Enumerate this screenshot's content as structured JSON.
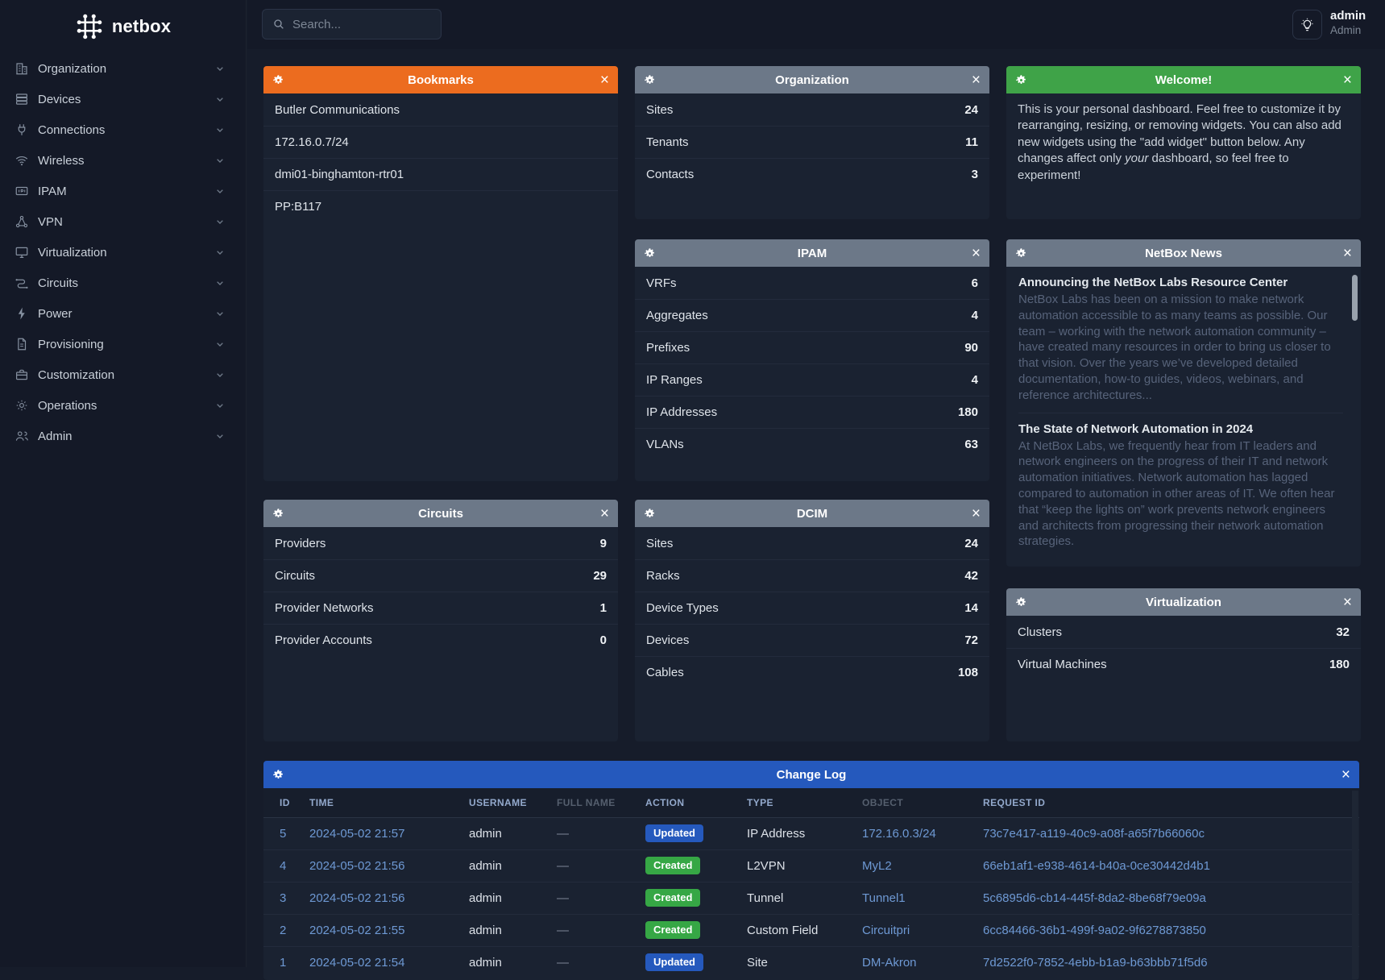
{
  "colors": {
    "page_bg": "#161c2a",
    "sidebar_bg": "#141927",
    "card_bg": "#1a2231",
    "header_orange": "#ec6c1f",
    "header_gray": "#6c7888",
    "header_green": "#3fa348",
    "header_blue": "#2559bd",
    "badge_created_green": "#36a745",
    "badge_updated_blue": "#2559bd",
    "link_blue": "#6e99d4"
  },
  "sidebar": {
    "logo_text": "netbox",
    "items": [
      {
        "label": "Organization",
        "icon": "building-icon"
      },
      {
        "label": "Devices",
        "icon": "devices-icon"
      },
      {
        "label": "Connections",
        "icon": "plug-icon"
      },
      {
        "label": "Wireless",
        "icon": "wifi-icon"
      },
      {
        "label": "IPAM",
        "icon": "ipam-icon"
      },
      {
        "label": "VPN",
        "icon": "network-nodes-icon"
      },
      {
        "label": "Virtualization",
        "icon": "monitor-icon"
      },
      {
        "label": "Circuits",
        "icon": "transit-icon"
      },
      {
        "label": "Power",
        "icon": "lightning-icon"
      },
      {
        "label": "Provisioning",
        "icon": "document-icon"
      },
      {
        "label": "Customization",
        "icon": "briefcase-icon"
      },
      {
        "label": "Operations",
        "icon": "gears-icon"
      },
      {
        "label": "Admin",
        "icon": "users-icon"
      }
    ]
  },
  "topbar": {
    "search_placeholder": "Search...",
    "username": "admin",
    "role": "Admin"
  },
  "widgets": {
    "bookmarks": {
      "title": "Bookmarks",
      "items": [
        "Butler Communications",
        "172.16.0.7/24",
        "dmi01-binghamton-rtr01",
        "PP:B117"
      ]
    },
    "organization": {
      "title": "Organization",
      "stats": [
        {
          "label": "Sites",
          "value": "24"
        },
        {
          "label": "Tenants",
          "value": "11"
        },
        {
          "label": "Contacts",
          "value": "3"
        }
      ]
    },
    "welcome": {
      "title": "Welcome!",
      "text_before": "This is your personal dashboard. Feel free to customize it by rearranging, resizing, or removing widgets. You can also add new widgets using the \"add widget\" button below. Any changes affect only ",
      "text_italic": "your",
      "text_after": " dashboard, so feel free to experiment!"
    },
    "ipam": {
      "title": "IPAM",
      "stats": [
        {
          "label": "VRFs",
          "value": "6"
        },
        {
          "label": "Aggregates",
          "value": "4"
        },
        {
          "label": "Prefixes",
          "value": "90"
        },
        {
          "label": "IP Ranges",
          "value": "4"
        },
        {
          "label": "IP Addresses",
          "value": "180"
        },
        {
          "label": "VLANs",
          "value": "63"
        }
      ]
    },
    "news": {
      "title": "NetBox News",
      "articles": [
        {
          "headline": "Announcing the NetBox Labs Resource Center",
          "body": "NetBox Labs has been on a mission to make network automation accessible to as many teams as possible. Our team – working with the network automation community – have created many resources in order to bring us closer to that vision. Over the years we’ve developed detailed documentation, how-to guides, videos, webinars, and reference architectures..."
        },
        {
          "headline": "The State of Network Automation in 2024",
          "body": "At NetBox Labs, we frequently hear from IT leaders and network engineers on the progress of their IT and network automation initiatives. Network automation has lagged compared to automation in other areas of IT. We often hear that “keep the lights on” work prevents network engineers and architects from progressing their network automation strategies."
        }
      ]
    },
    "circuits": {
      "title": "Circuits",
      "stats": [
        {
          "label": "Providers",
          "value": "9"
        },
        {
          "label": "Circuits",
          "value": "29"
        },
        {
          "label": "Provider Networks",
          "value": "1"
        },
        {
          "label": "Provider Accounts",
          "value": "0"
        }
      ]
    },
    "dcim": {
      "title": "DCIM",
      "stats": [
        {
          "label": "Sites",
          "value": "24"
        },
        {
          "label": "Racks",
          "value": "42"
        },
        {
          "label": "Device Types",
          "value": "14"
        },
        {
          "label": "Devices",
          "value": "72"
        },
        {
          "label": "Cables",
          "value": "108"
        }
      ]
    },
    "virtualization": {
      "title": "Virtualization",
      "stats": [
        {
          "label": "Clusters",
          "value": "32"
        },
        {
          "label": "Virtual Machines",
          "value": "180"
        }
      ]
    },
    "changelog": {
      "title": "Change Log",
      "columns": [
        {
          "label": "ID"
        },
        {
          "label": "TIME"
        },
        {
          "label": "USERNAME"
        },
        {
          "label": "FULL NAME",
          "muted": true
        },
        {
          "label": "ACTION"
        },
        {
          "label": "TYPE"
        },
        {
          "label": "OBJECT",
          "muted": true
        },
        {
          "label": "REQUEST ID"
        }
      ],
      "rows": [
        {
          "id": "5",
          "time": "2024-05-02 21:57",
          "username": "admin",
          "full_name": "—",
          "action": "Updated",
          "action_type": "updated",
          "type": "IP Address",
          "object": "172.16.0.3/24",
          "request_id": "73c7e417-a119-40c9-a08f-a65f7b66060c"
        },
        {
          "id": "4",
          "time": "2024-05-02 21:56",
          "username": "admin",
          "full_name": "—",
          "action": "Created",
          "action_type": "created",
          "type": "L2VPN",
          "object": "MyL2",
          "request_id": "66eb1af1-e938-4614-b40a-0ce30442d4b1"
        },
        {
          "id": "3",
          "time": "2024-05-02 21:56",
          "username": "admin",
          "full_name": "—",
          "action": "Created",
          "action_type": "created",
          "type": "Tunnel",
          "object": "Tunnel1",
          "request_id": "5c6895d6-cb14-445f-8da2-8be68f79e09a"
        },
        {
          "id": "2",
          "time": "2024-05-02 21:55",
          "username": "admin",
          "full_name": "—",
          "action": "Created",
          "action_type": "created",
          "type": "Custom Field",
          "object": "Circuitpri",
          "request_id": "6cc84466-36b1-499f-9a02-9f6278873850"
        },
        {
          "id": "1",
          "time": "2024-05-02 21:54",
          "username": "admin",
          "full_name": "—",
          "action": "Updated",
          "action_type": "updated",
          "type": "Site",
          "object": "DM-Akron",
          "request_id": "7d2522f0-7852-4ebb-b1a9-b63bbb71f5d6"
        }
      ]
    }
  }
}
